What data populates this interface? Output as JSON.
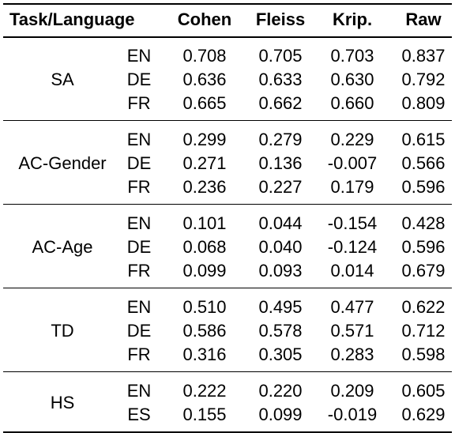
{
  "headers": {
    "task": "Task/Language",
    "cohen": "Cohen",
    "fleiss": "Fleiss",
    "krip": "Krip.",
    "raw": "Raw"
  },
  "groups": [
    {
      "task": "SA",
      "rows": [
        {
          "lang": "EN",
          "cohen": "0.708",
          "fleiss": "0.705",
          "krip": "0.703",
          "raw": "0.837"
        },
        {
          "lang": "DE",
          "cohen": "0.636",
          "fleiss": "0.633",
          "krip": "0.630",
          "raw": "0.792"
        },
        {
          "lang": "FR",
          "cohen": "0.665",
          "fleiss": "0.662",
          "krip": "0.660",
          "raw": "0.809"
        }
      ]
    },
    {
      "task": "AC-Gender",
      "rows": [
        {
          "lang": "EN",
          "cohen": "0.299",
          "fleiss": "0.279",
          "krip": "0.229",
          "raw": "0.615"
        },
        {
          "lang": "DE",
          "cohen": "0.271",
          "fleiss": "0.136",
          "krip": "-0.007",
          "raw": "0.566"
        },
        {
          "lang": "FR",
          "cohen": "0.236",
          "fleiss": "0.227",
          "krip": "0.179",
          "raw": "0.596"
        }
      ]
    },
    {
      "task": "AC-Age",
      "rows": [
        {
          "lang": "EN",
          "cohen": "0.101",
          "fleiss": "0.044",
          "krip": "-0.154",
          "raw": "0.428"
        },
        {
          "lang": "DE",
          "cohen": "0.068",
          "fleiss": "0.040",
          "krip": "-0.124",
          "raw": "0.596"
        },
        {
          "lang": "FR",
          "cohen": "0.099",
          "fleiss": "0.093",
          "krip": "0.014",
          "raw": "0.679"
        }
      ]
    },
    {
      "task": "TD",
      "rows": [
        {
          "lang": "EN",
          "cohen": "0.510",
          "fleiss": "0.495",
          "krip": "0.477",
          "raw": "0.622"
        },
        {
          "lang": "DE",
          "cohen": "0.586",
          "fleiss": "0.578",
          "krip": "0.571",
          "raw": "0.712"
        },
        {
          "lang": "FR",
          "cohen": "0.316",
          "fleiss": "0.305",
          "krip": "0.283",
          "raw": "0.598"
        }
      ]
    },
    {
      "task": "HS",
      "rows": [
        {
          "lang": "EN",
          "cohen": "0.222",
          "fleiss": "0.220",
          "krip": "0.209",
          "raw": "0.605"
        },
        {
          "lang": "ES",
          "cohen": "0.155",
          "fleiss": "0.099",
          "krip": "-0.019",
          "raw": "0.629"
        }
      ]
    }
  ]
}
